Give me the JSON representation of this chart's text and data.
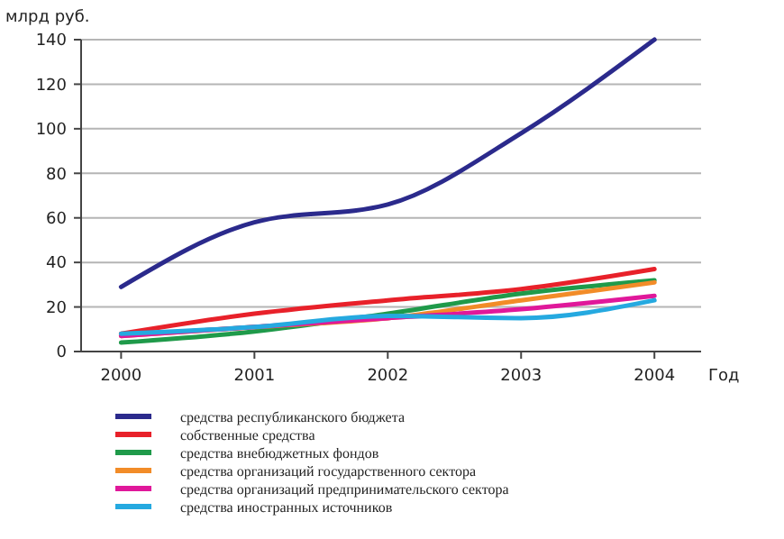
{
  "chart_data": {
    "type": "line",
    "ylabel": "млрд руб.",
    "xlabel": "Год",
    "x": [
      2000,
      2001,
      2002,
      2003,
      2004
    ],
    "xlim": [
      1999.7,
      2004.35
    ],
    "xticks": [
      2000,
      2001,
      2002,
      2003,
      2004
    ],
    "ylim": [
      0,
      140
    ],
    "yticks": [
      0,
      20,
      40,
      60,
      80,
      100,
      120,
      140
    ],
    "grid": "y",
    "legend": "bottom",
    "marker": "none",
    "series": [
      {
        "name": "средства республиканского бюджета",
        "color": "#2b2a8c",
        "values": [
          29,
          58,
          66,
          98,
          140
        ]
      },
      {
        "name": "собственные средства",
        "color": "#e8212a",
        "values": [
          8,
          17,
          23,
          28,
          37
        ]
      },
      {
        "name": "средства внебюджетных фондов",
        "color": "#1f9a4a",
        "values": [
          4,
          9,
          17,
          26,
          32
        ]
      },
      {
        "name": "средства организаций государственного сектора",
        "color": "#f28c28",
        "values": [
          7,
          11,
          15,
          23,
          31
        ]
      },
      {
        "name": "средства организаций предпринимательского сектора",
        "color": "#e0189a",
        "values": [
          7,
          11,
          15,
          19,
          25
        ]
      },
      {
        "name": "средства иностранных источников",
        "color": "#25a9e0",
        "values": [
          8,
          11,
          16,
          15,
          23
        ]
      }
    ]
  }
}
